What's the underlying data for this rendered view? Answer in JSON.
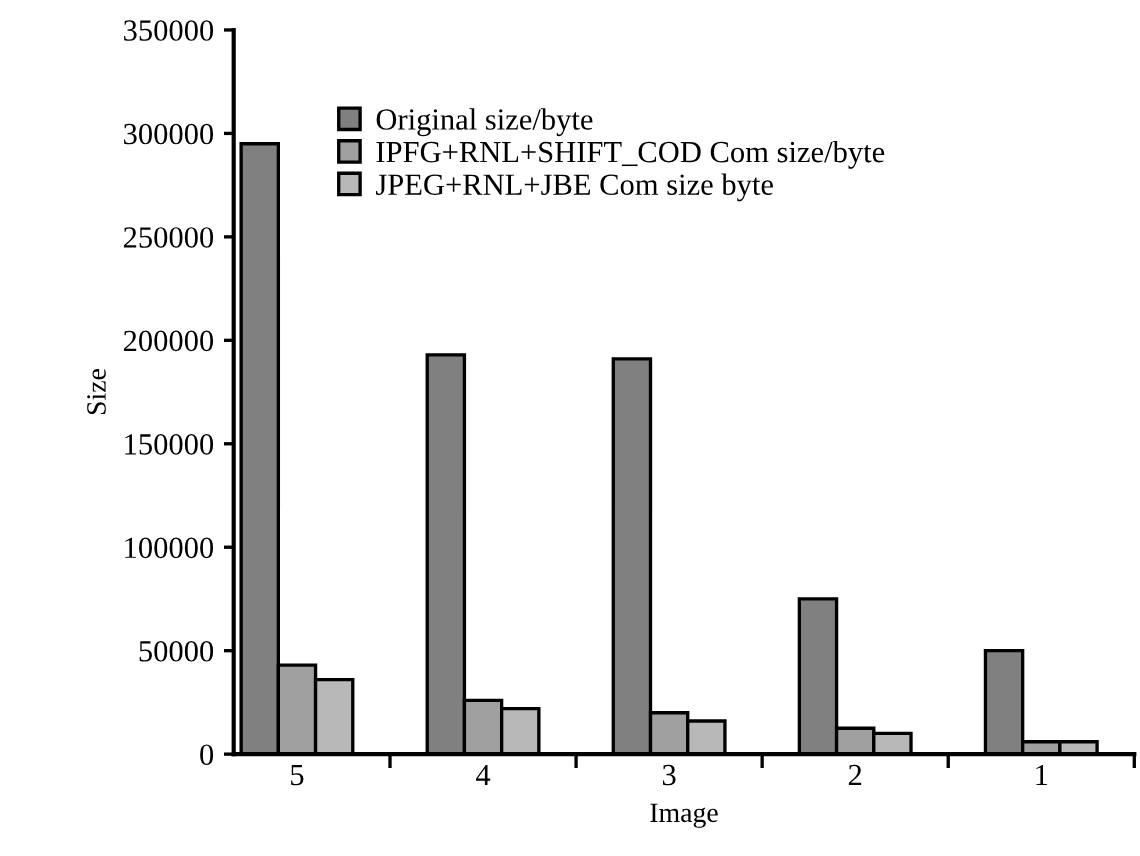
{
  "chart_data": {
    "type": "bar",
    "xlabel": "Image",
    "ylabel": "Size",
    "categories": [
      "5",
      "4",
      "3",
      "2",
      "1"
    ],
    "series": [
      {
        "name": "Original size/byte",
        "color": "#808080",
        "values": [
          295000,
          193000,
          191000,
          75000,
          50000
        ]
      },
      {
        "name": "IPFG+RNL+SHIFT_COD Com size/byte",
        "color": "#a0a0a0",
        "values": [
          43000,
          26000,
          20000,
          12500,
          6000
        ]
      },
      {
        "name": "JPEG+RNL+JBE Com size byte",
        "color": "#b8b8b8",
        "values": [
          36000,
          22000,
          16000,
          10000,
          6000
        ]
      }
    ],
    "ylim": [
      0,
      350000
    ],
    "yticks": [
      0,
      50000,
      100000,
      150000,
      200000,
      250000,
      300000,
      350000
    ],
    "grid": false,
    "legend": "top"
  }
}
